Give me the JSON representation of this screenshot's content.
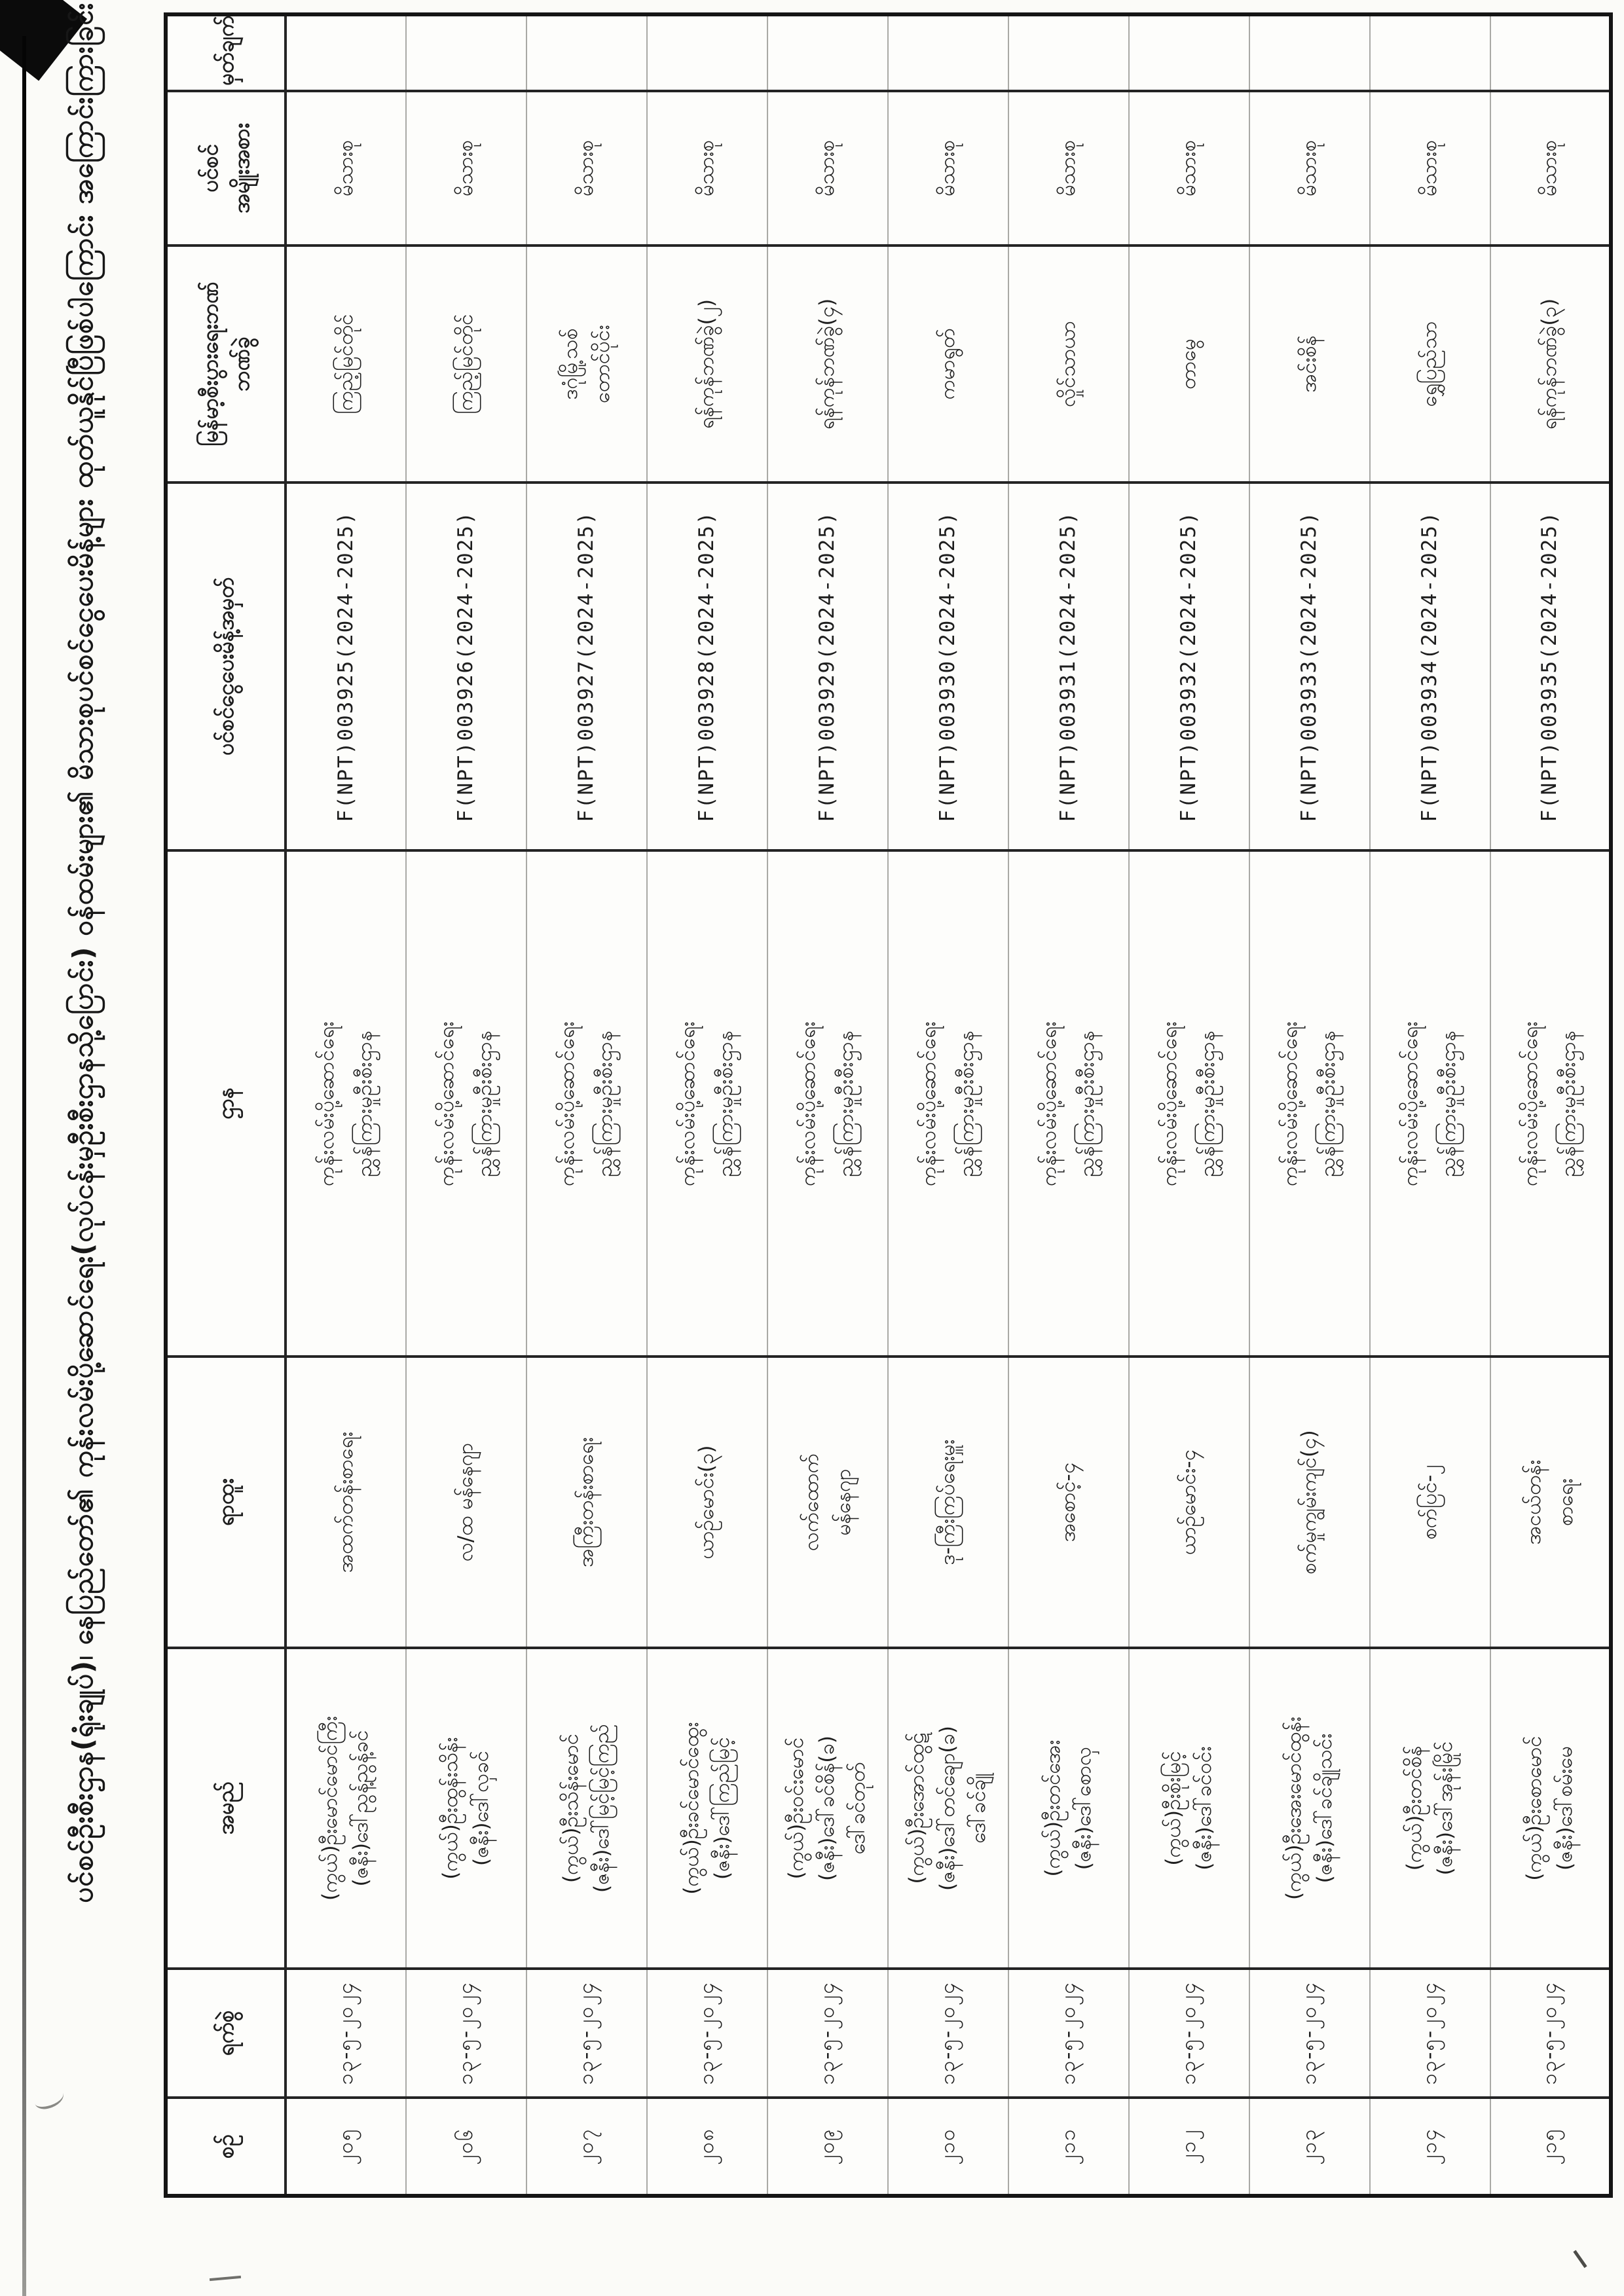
{
  "document": {
    "kind": "scanned pension list (Myanmar, rotated 90° on scan)",
    "title": "ပင်စင်ဦးစီးဌာန(ရုံးချုပ်)၊ နေပြည်တော်၏ ကုန်းလမ်းပို့ဆောင်ရေး(လုပ်ငန်းမှဦးစီးဌာနသို့ပြောင်း) ဝန်ထမ်းများ၏ မိသားစုပင်စင်ငွေပေးမိန့်များ ထုတ်ယူနိုင်ပြီဖြစ်ပါကြောင်း အကြောင်းကြားခြင်း"
  },
  "table": {
    "headers": [
      "စဉ်",
      "ရက်စွဲ",
      "အမည်",
      "ရာထူး",
      "ဌာန",
      "ပင်စင်ငွေပေးမိန့်အမှတ်",
      "မြန်မာ့စီးပွားရေးဘဏ်\nဘဏ်ခွဲ",
      "ပင်စင်\nအမျိုးအစား",
      "မှတ်ချက်"
    ],
    "rows": [
      {
        "serial": "၂၀၅",
        "date": "၁၃-၅-၂၀၂၄",
        "name": [
          "(ကွယ်)ဦးမောင်မောင်ကြီး",
          "(ဇနီး)ဒေါ်ညွန့်ညွန့်ခင်"
        ],
        "position": [
          "အထက်တန်းစာရေး"
        ],
        "department": [
          "ကုန်းလမ်းပို့ဆောင်ရေး",
          "ညွှန်ကြားမှုဦးစီးဌာန"
        ],
        "ppo_number": "F(NPT)003925(2024-2025)",
        "bank_branch": [
          "ကြည့်မြင်တိုင်"
        ],
        "pension_type": "မိသားစု",
        "remark": ""
      },
      {
        "serial": "၂၀၆",
        "date": "၁၃-၅-၂၀၂၄",
        "name": [
          "(ကွယ်)ဦးထွန်းသိန်း",
          "(ဇနီး)ဒေါ်လှခင်"
        ],
        "position": [
          "လ/ထ မန်နေဂျာ"
        ],
        "department": [
          "ကုန်းလမ်းပို့ဆောင်ရေး",
          "ညွှန်ကြားမှုဦးစီးဌာန"
        ],
        "ppo_number": "F(NPT)003926(2024-2025)",
        "bank_branch": [
          "ကြည့်မြင်တိုင်"
        ],
        "pension_type": "မိသားစု",
        "remark": ""
      },
      {
        "serial": "၂၀၇",
        "date": "၁၃-၅-၂၀၂၄",
        "name": [
          "(ကွယ်)ဦးသိန်းမောင်",
          "(ဇနီး)ဒေါ်မြင့်မြင့်ကြည်"
        ],
        "position": [
          "အကြီးတန်းစာရေး"
        ],
        "department": [
          "ကုန်းလမ်းပို့ဆောင်ရေး",
          "ညွှန်ကြားမှုဦးစီးဌာန"
        ],
        "ppo_number": "F(NPT)003927(2024-2025)",
        "bank_branch": [
          "ဒဂုံမြို့သစ်",
          "တောင်ပိုင်း"
        ],
        "pension_type": "မိသားစု",
        "remark": ""
      },
      {
        "serial": "၂၀၈",
        "date": "၁၃-၅-၂၀၂၄",
        "name": [
          "(ကွယ်)ဦးခင်မောင်ထွေး",
          "(ဇနီး)ဒေါ်ကြည်မြင့်"
        ],
        "position": [
          "ယာဉ်မောင်း(၃)"
        ],
        "department": [
          "ကုန်းလမ်းပို့ဆောင်ရေး",
          "ညွှန်ကြားမှုဦးစီးဌာန"
        ],
        "ppo_number": "F(NPT)003928(2024-2025)",
        "bank_branch": [
          "ရန်ကုန်ဘဏ်ခွဲ(၂)"
        ],
        "pension_type": "မိသားစု",
        "remark": ""
      },
      {
        "serial": "၂၀၉",
        "date": "၁၃-၅-၂၀၂၄",
        "name": [
          "(ကွယ်)ဦးဝင်းမောင်",
          "(ဇနီး)ဒေါ်ခင်စိန်(ခ)",
          "ဒေါ်ခင်တုတ်"
        ],
        "position": [
          "လက်ထောက်",
          "မန်နေဂျာ"
        ],
        "department": [
          "ကုန်းလမ်းပို့ဆောင်ရေး",
          "ညွှန်ကြားမှုဦးစီးဌာန"
        ],
        "ppo_number": "F(NPT)003929(2024-2025)",
        "bank_branch": [
          "ရန်ကုန်ဘဏ်ခွဲ(၄)"
        ],
        "pension_type": "မိသားစု",
        "remark": ""
      },
      {
        "serial": "၂၁၀",
        "date": "၁၃-၅-၂၀၂၄",
        "name": [
          "(ကွယ်)ဦးအောင်ထွဋ်",
          "(ဇနီး)ဒေါ်တင်ချော(ခ)",
          "ဒေါ်ခင်ချို"
        ],
        "position": [
          "ဒု-ကြီးကြပ်ရေးမှူး"
        ],
        "department": [
          "ကုန်းလမ်းပို့ဆောင်ရေး",
          "ညွှန်ကြားမှုဦးစီးဌာန"
        ],
        "ppo_number": "F(NPT)003930(2024-2025)",
        "bank_branch": [
          "ကမာရွတ်"
        ],
        "pension_type": "မိသားစု",
        "remark": ""
      },
      {
        "serial": "၂၁၁",
        "date": "၁၃-၅-၂၀၂၄",
        "name": [
          "(ကွယ်)ဦးတင်အေး",
          "(ဇနီး)ဒေါ်စောလှ"
        ],
        "position": [
          "အစောင့်-၄"
        ],
        "department": [
          "ကုန်းလမ်းပို့ဆောင်ရေး",
          "ညွှန်ကြားမှုဦးစီးဌာန"
        ],
        "ppo_number": "F(NPT)003931(2024-2025)",
        "bank_branch": [
          "လှိုင်သာယာ"
        ],
        "pension_type": "မိသားစု",
        "remark": ""
      },
      {
        "serial": "၂၁၂",
        "date": "၁၃-၅-၂၀၂၄",
        "name": [
          "(ကွယ်)ဦးစိုးမြင့်",
          "(ဇနီး)ဒေါ်ခင်ဝင်း"
        ],
        "position": [
          "ယာဉ်မောင်း-၄"
        ],
        "department": [
          "ကုန်းလမ်းပို့ဆောင်ရေး",
          "ညွှန်ကြားမှုဦးစီးဌာန"
        ],
        "ppo_number": "F(NPT)003932(2024-2025)",
        "bank_branch": [
          "တာမွေ"
        ],
        "pension_type": "မိသားစု",
        "remark": ""
      },
      {
        "serial": "၂၁၃",
        "date": "၁၃-၅-၂၀၂၄",
        "name": [
          "(ကွယ်)ဦးအေးမောင်ထွန်း",
          "(ဇနီး)ဒေါ်ခင်ချိုသင်း"
        ],
        "position": [
          "စက်မှုကျွမ်းကျင်(၄)"
        ],
        "department": [
          "ကုန်းလမ်းပို့ဆောင်ရေး",
          "ညွှန်ကြားမှုဦးစီးဌာန"
        ],
        "ppo_number": "F(NPT)003933(2024-2025)",
        "bank_branch": [
          "အင်းစိန်"
        ],
        "pension_type": "မိသားစု",
        "remark": ""
      },
      {
        "serial": "၂၁၄",
        "date": "၁၃-၅-၂၀၂၄",
        "name": [
          "(ကွယ်)ဦးတင်စိန်",
          "(ဇနီး)ဒေါ်အုန်းမြိုင်"
        ],
        "position": [
          "စက်ပြင်-၂"
        ],
        "department": [
          "ကုန်းလမ်းပို့ဆောင်ရေး",
          "ညွှန်ကြားမှုဦးစီးဌာန"
        ],
        "ppo_number": "F(NPT)003934(2024-2025)",
        "bank_branch": [
          "ရွှေပြည်သာ"
        ],
        "pension_type": "မိသားစု",
        "remark": ""
      },
      {
        "serial": "၂၁၅",
        "date": "၁၃-၅-၂၀၂၄",
        "name": [
          "(ကွယ်)ဦးစောမောင်",
          "(ဇနီး)ဒေါ်စမ်းမေ"
        ],
        "position": [
          "အငယ်တန်း",
          "စာရေး"
        ],
        "department": [
          "ကုန်းလမ်းပို့ဆောင်ရေး",
          "ညွှန်ကြားမှုဦးစီးဌာန"
        ],
        "ppo_number": "F(NPT)003935(2024-2025)",
        "bank_branch": [
          "ရန်ကုန်ဘဏ်ခွဲ(၃)"
        ],
        "pension_type": "မိသားစု",
        "remark": ""
      }
    ]
  }
}
